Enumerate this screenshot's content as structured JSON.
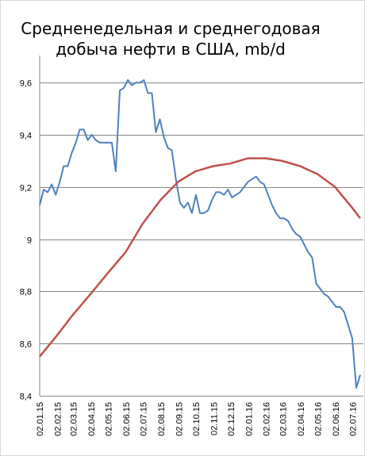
{
  "chart_data": {
    "type": "line",
    "title": [
      "Средненедельная и среднегодовая",
      "добыча нефти в США, mb/d"
    ],
    "xlabel": "",
    "ylabel": "",
    "ylim": [
      8.4,
      9.7
    ],
    "y_ticks": [
      "8,4",
      "8,6",
      "8,8",
      "9",
      "9,2",
      "9,4",
      "9,6"
    ],
    "y_tick_values": [
      8.4,
      8.6,
      8.8,
      9.0,
      9.2,
      9.4,
      9.6
    ],
    "grid": true,
    "legend": "none",
    "x_tick_labels": [
      "02.01.15",
      "02.02.15",
      "02.03.15",
      "02.04.15",
      "02.05.15",
      "02.06.15",
      "02.07.15",
      "02.08.15",
      "02.09.15",
      "02.10.15",
      "02.11.15",
      "02.12.15",
      "02.01.16",
      "02.02.16",
      "02.03.16",
      "02.04.16",
      "02.05.16",
      "02.06.16",
      "02.07.16"
    ],
    "x_range": [
      "02.01.15",
      "15.07.16"
    ],
    "series": [
      {
        "color": "#4F81BD",
        "dates": [
          "2015-01-02",
          "2015-01-09",
          "2015-01-16",
          "2015-01-23",
          "2015-01-30",
          "2015-02-06",
          "2015-02-13",
          "2015-02-20",
          "2015-02-27",
          "2015-03-06",
          "2015-03-13",
          "2015-03-20",
          "2015-03-27",
          "2015-04-03",
          "2015-04-10",
          "2015-04-17",
          "2015-04-24",
          "2015-05-01",
          "2015-05-08",
          "2015-05-15",
          "2015-05-22",
          "2015-05-29",
          "2015-06-05",
          "2015-06-12",
          "2015-06-19",
          "2015-06-26",
          "2015-07-03",
          "2015-07-10",
          "2015-07-17",
          "2015-07-24",
          "2015-07-31",
          "2015-08-07",
          "2015-08-14",
          "2015-08-21",
          "2015-08-28",
          "2015-09-04",
          "2015-09-11",
          "2015-09-18",
          "2015-09-25",
          "2015-10-02",
          "2015-10-09",
          "2015-10-16",
          "2015-10-23",
          "2015-10-30",
          "2015-11-06",
          "2015-11-13",
          "2015-11-20",
          "2015-11-27",
          "2015-12-04",
          "2015-12-11",
          "2015-12-18",
          "2015-12-25",
          "2016-01-01",
          "2016-01-08",
          "2016-01-15",
          "2016-01-22",
          "2016-01-29",
          "2016-02-05",
          "2016-02-12",
          "2016-02-19",
          "2016-02-26",
          "2016-03-04",
          "2016-03-11",
          "2016-03-18",
          "2016-03-25",
          "2016-04-01",
          "2016-04-08",
          "2016-04-15",
          "2016-04-22",
          "2016-04-29",
          "2016-05-06",
          "2016-05-13",
          "2016-05-20",
          "2016-05-27",
          "2016-06-03",
          "2016-06-10",
          "2016-06-17",
          "2016-06-24",
          "2016-07-01",
          "2016-07-08",
          "2016-07-15"
        ],
        "values": [
          9.13,
          9.19,
          9.18,
          9.21,
          9.17,
          9.22,
          9.28,
          9.28,
          9.33,
          9.37,
          9.42,
          9.42,
          9.38,
          9.4,
          9.38,
          9.37,
          9.37,
          9.37,
          9.37,
          9.26,
          9.57,
          9.58,
          9.61,
          9.59,
          9.6,
          9.6,
          9.61,
          9.56,
          9.56,
          9.41,
          9.46,
          9.39,
          9.35,
          9.34,
          9.23,
          9.14,
          9.12,
          9.14,
          9.1,
          9.17,
          9.1,
          9.1,
          9.11,
          9.15,
          9.18,
          9.18,
          9.17,
          9.19,
          9.16,
          9.17,
          9.18,
          9.2,
          9.22,
          9.23,
          9.24,
          9.22,
          9.21,
          9.17,
          9.13,
          9.1,
          9.08,
          9.08,
          9.07,
          9.04,
          9.02,
          9.01,
          8.98,
          8.95,
          8.93,
          8.83,
          8.81,
          8.79,
          8.78,
          8.76,
          8.74,
          8.74,
          8.72,
          8.67,
          8.62,
          8.43,
          8.48
        ]
      },
      {
        "color": "#C0504D",
        "dates": [
          "2015-01-02",
          "2015-02-01",
          "2015-03-01",
          "2015-04-01",
          "2015-05-01",
          "2015-06-01",
          "2015-07-01",
          "2015-08-01",
          "2015-09-01",
          "2015-10-01",
          "2015-11-01",
          "2015-12-01",
          "2016-01-01",
          "2016-02-01",
          "2016-03-01",
          "2016-04-01",
          "2016-05-01",
          "2016-06-01",
          "2016-07-01",
          "2016-07-15"
        ],
        "values": [
          8.55,
          8.63,
          8.71,
          8.79,
          8.87,
          8.95,
          9.06,
          9.15,
          9.22,
          9.26,
          9.28,
          9.29,
          9.31,
          9.31,
          9.3,
          9.28,
          9.25,
          9.2,
          9.12,
          9.08
        ]
      }
    ]
  }
}
